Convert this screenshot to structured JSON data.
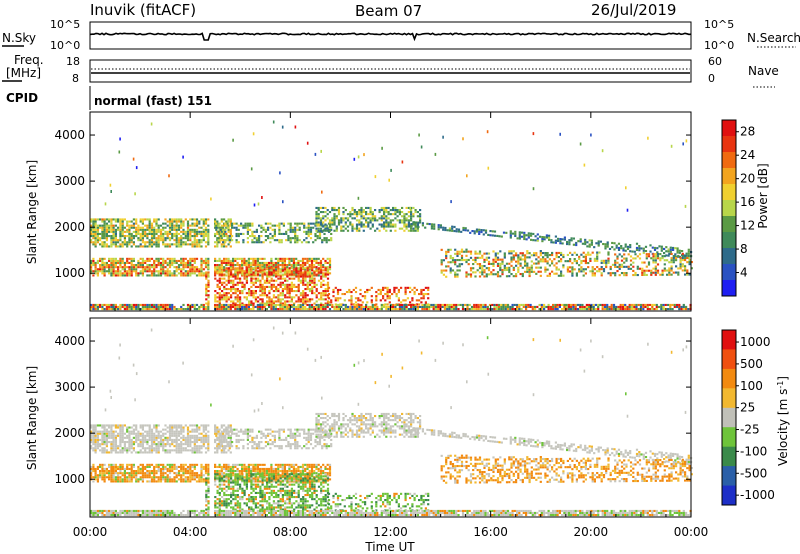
{
  "header": {
    "station": "Inuvik (fitACF)",
    "beam": "Beam 07",
    "date": "26/Jul/2019"
  },
  "top_panel_labels": {
    "nsky": "N.Sky",
    "nsearch": "N.Search",
    "freq": "Freq.",
    "freq_unit": "[MHz]",
    "nave": "Nave",
    "cpid": "CPID",
    "cpid_value": "normal (fast) 151",
    "nsky_ticks": [
      "10^5",
      "10^0"
    ],
    "nsearch_ticks": [
      "10^5",
      "10^0"
    ],
    "freq_ticks": [
      "18",
      "8"
    ],
    "nave_ticks": [
      "60",
      "0"
    ]
  },
  "chart_data": [
    {
      "type": "heatmap",
      "name": "power",
      "ylabel": "Slant Range [km]",
      "xlabel": "Time UT",
      "ylim": [
        180,
        4500
      ],
      "xlim_hours": [
        0,
        24
      ],
      "x_ticks": [
        "00:00",
        "04:00",
        "08:00",
        "12:00",
        "16:00",
        "20:00",
        "00:00"
      ],
      "y_ticks": [
        1000,
        2000,
        3000,
        4000
      ],
      "colorbar": {
        "label": "Power [dB]",
        "ticks": [
          "4",
          "8",
          "12",
          "16",
          "20",
          "24",
          "28"
        ],
        "colors": [
          "#1f1ff2",
          "#2a52c2",
          "#2e6b8a",
          "#3f8a5a",
          "#5a9a44",
          "#b8d64a",
          "#f0d030",
          "#f2a41f",
          "#f06a10",
          "#e83410",
          "#e01010"
        ]
      },
      "data_note": "Approximate echo bands (hours UT, km): band1 0.0-5.5 1550-2150, band2 0.0-9.5 950-1300, band3 4.5-9.5 350-1100 strong, band4 9.0-13.0 1900-2450, band5 12.5-24.0 1050-2000 descending, ground 0.0-24.0 200-320"
    },
    {
      "type": "heatmap",
      "name": "velocity",
      "ylabel": "Slant Range [km]",
      "xlabel": "Time UT",
      "ylim": [
        180,
        4500
      ],
      "xlim_hours": [
        0,
        24
      ],
      "x_ticks": [
        "00:00",
        "04:00",
        "08:00",
        "12:00",
        "16:00",
        "20:00",
        "00:00"
      ],
      "y_ticks": [
        1000,
        2000,
        3000,
        4000
      ],
      "colorbar": {
        "label": "Velocity [m s-1]",
        "label_main": "Velocity [m s",
        "label_sup": "-1",
        "label_end": "]",
        "ticks": [
          "1000",
          "500",
          "100",
          "25",
          "-25",
          "-100",
          "-500",
          "-1000"
        ],
        "colors": [
          "#1d2fc7",
          "#2a5fa8",
          "#3a8a4a",
          "#6ec43a",
          "#c0c0b8",
          "#f2b830",
          "#f28a10",
          "#f05010",
          "#e01010"
        ]
      }
    }
  ],
  "x_axis_label": "Time UT"
}
